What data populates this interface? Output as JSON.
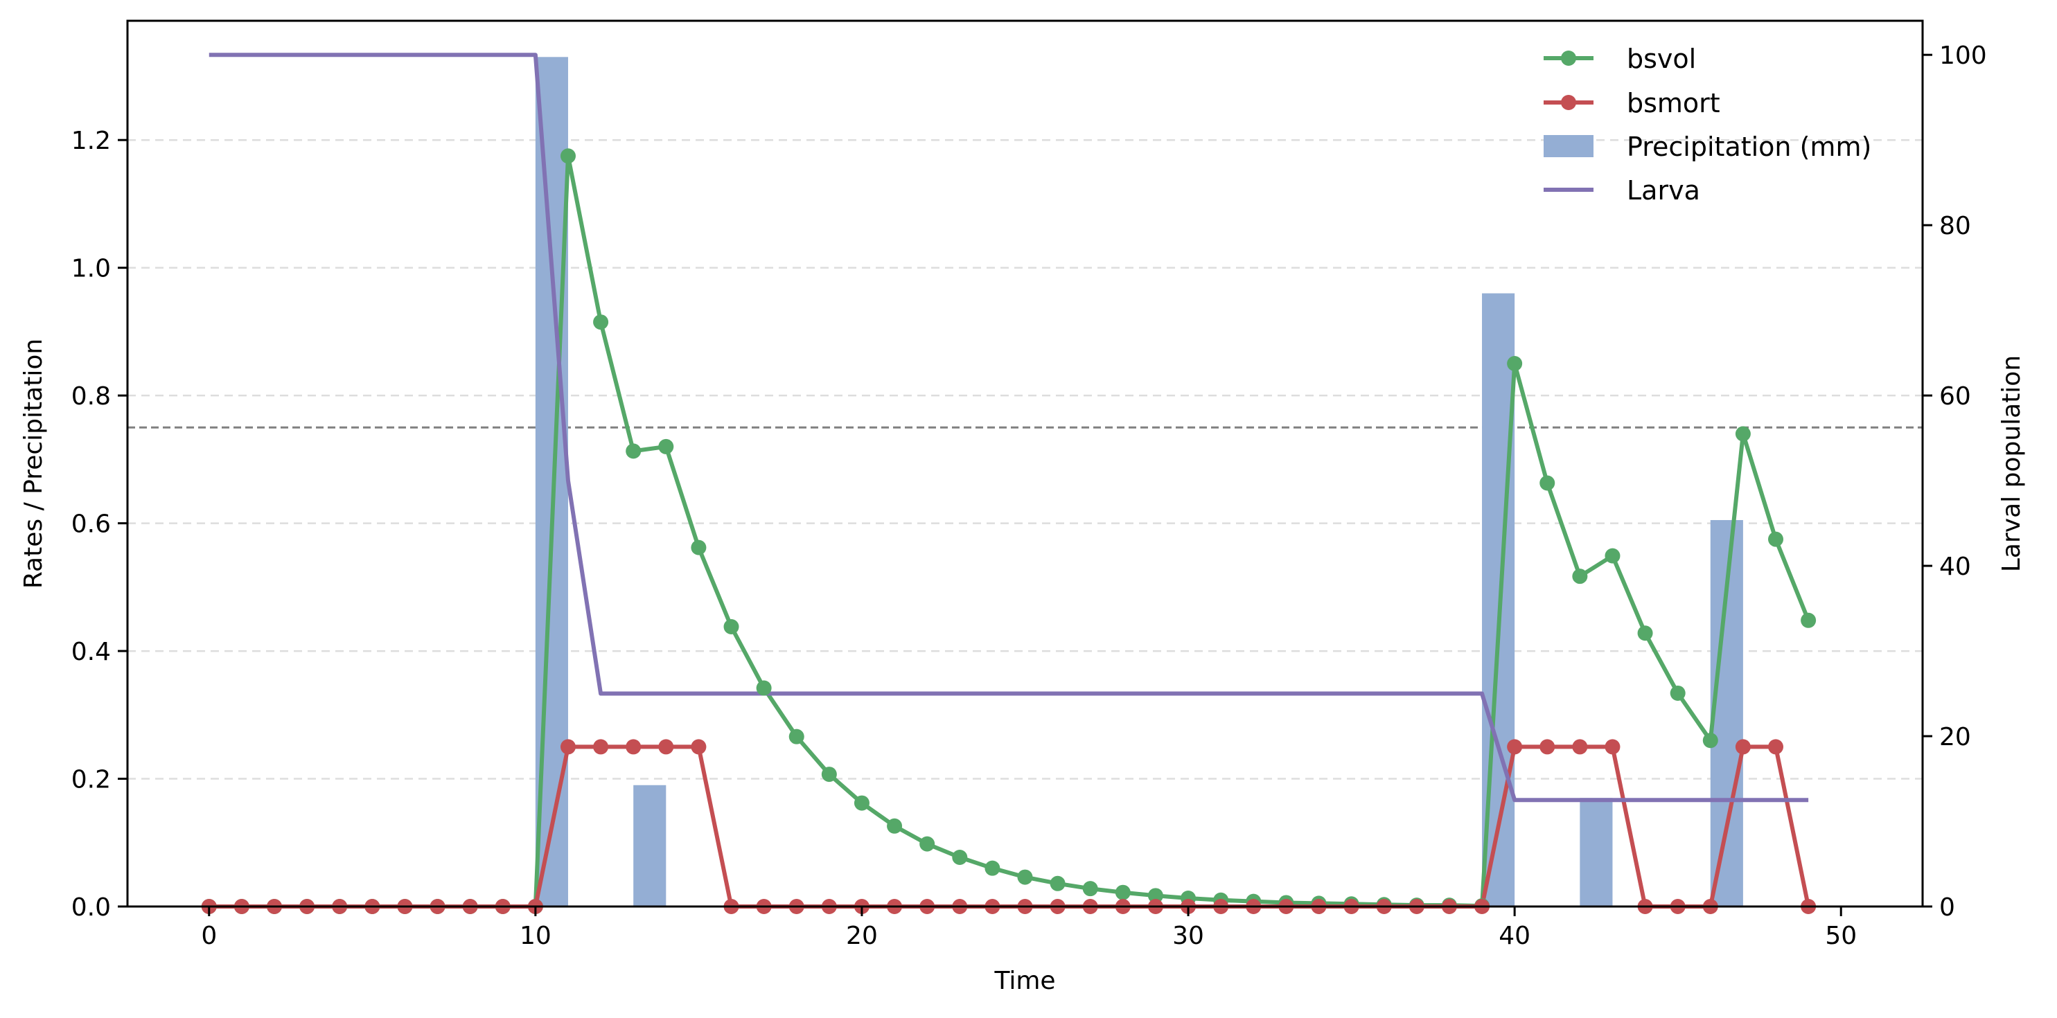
{
  "chart_data": {
    "type": "line",
    "title": "",
    "xlabel": "Time",
    "ylabel": "Rates / Precipitation",
    "y2label": "Larval population",
    "xlim": [
      -2.5,
      52.5
    ],
    "ylim": [
      0,
      1.3867
    ],
    "y2lim": [
      0,
      104
    ],
    "x_ticks": [
      0,
      10,
      20,
      30,
      40,
      50
    ],
    "y_ticks": [
      0.0,
      0.2,
      0.4,
      0.6,
      0.8,
      1.0,
      1.2
    ],
    "y2_ticks": [
      0,
      20,
      40,
      60,
      80,
      100
    ],
    "x_tick_labels": [
      "0",
      "10",
      "20",
      "30",
      "40",
      "50"
    ],
    "y_tick_labels": [
      "0.0",
      "0.2",
      "0.4",
      "0.6",
      "0.8",
      "1.0",
      "1.2"
    ],
    "y2_tick_labels": [
      "0",
      "20",
      "40",
      "60",
      "80",
      "100"
    ],
    "grid": "horizontal dashed",
    "reference_line": {
      "y": 0.75,
      "style": "dashed",
      "color": "#808080"
    },
    "legend_position": "upper right",
    "colors": {
      "bsvol": "#55a868",
      "bsmort": "#c44e52",
      "precipitation": "#94aed4",
      "larva": "#8172b3"
    },
    "series": [
      {
        "name": "bsvol",
        "axis": "left",
        "kind": "line-marker",
        "x": [
          0,
          1,
          2,
          3,
          4,
          5,
          6,
          7,
          8,
          9,
          10,
          11,
          12,
          13,
          14,
          15,
          16,
          17,
          18,
          19,
          20,
          21,
          22,
          23,
          24,
          25,
          26,
          27,
          28,
          29,
          30,
          31,
          32,
          33,
          34,
          35,
          36,
          37,
          38,
          39,
          40,
          41,
          42,
          43,
          44,
          45,
          46,
          47,
          48,
          49
        ],
        "values": [
          0,
          0,
          0,
          0,
          0,
          0,
          0,
          0,
          0,
          0,
          0,
          1.175,
          0.915,
          0.713,
          0.72,
          0.562,
          0.438,
          0.342,
          0.266,
          0.207,
          0.162,
          0.126,
          0.098,
          0.077,
          0.06,
          0.046,
          0.036,
          0.028,
          0.022,
          0.017,
          0.013,
          0.01,
          0.008,
          0.006,
          0.005,
          0.004,
          0.003,
          0.002,
          0.002,
          0.001,
          0.85,
          0.663,
          0.517,
          0.549,
          0.428,
          0.334,
          0.26,
          0.74,
          0.575,
          0.448
        ]
      },
      {
        "name": "bsmort",
        "axis": "left",
        "kind": "line-marker",
        "x": [
          0,
          1,
          2,
          3,
          4,
          5,
          6,
          7,
          8,
          9,
          10,
          11,
          12,
          13,
          14,
          15,
          16,
          17,
          18,
          19,
          20,
          21,
          22,
          23,
          24,
          25,
          26,
          27,
          28,
          29,
          30,
          31,
          32,
          33,
          34,
          35,
          36,
          37,
          38,
          39,
          40,
          41,
          42,
          43,
          44,
          45,
          46,
          47,
          48,
          49
        ],
        "values": [
          0,
          0,
          0,
          0,
          0,
          0,
          0,
          0,
          0,
          0,
          0,
          0.25,
          0.25,
          0.25,
          0.25,
          0.25,
          0,
          0,
          0,
          0,
          0,
          0,
          0,
          0,
          0,
          0,
          0,
          0,
          0,
          0,
          0,
          0,
          0,
          0,
          0,
          0,
          0,
          0,
          0,
          0,
          0.25,
          0.25,
          0.25,
          0.25,
          0,
          0,
          0,
          0.25,
          0.25,
          0
        ]
      },
      {
        "name": "Precipitation (mm)",
        "axis": "left",
        "kind": "bar",
        "x": [
          10.5,
          13.5,
          39.5,
          42.5,
          46.5
        ],
        "values": [
          1.33,
          0.19,
          0.96,
          0.17,
          0.605
        ],
        "bar_width": 1.0
      },
      {
        "name": "Larva",
        "axis": "right",
        "kind": "line",
        "x": [
          0,
          10,
          11,
          12,
          39,
          40,
          49
        ],
        "values": [
          100,
          100,
          50,
          25,
          25,
          12.5,
          12.5
        ]
      }
    ],
    "legend": [
      "bsvol",
      "bsmort",
      "Precipitation (mm)",
      "Larva"
    ]
  }
}
